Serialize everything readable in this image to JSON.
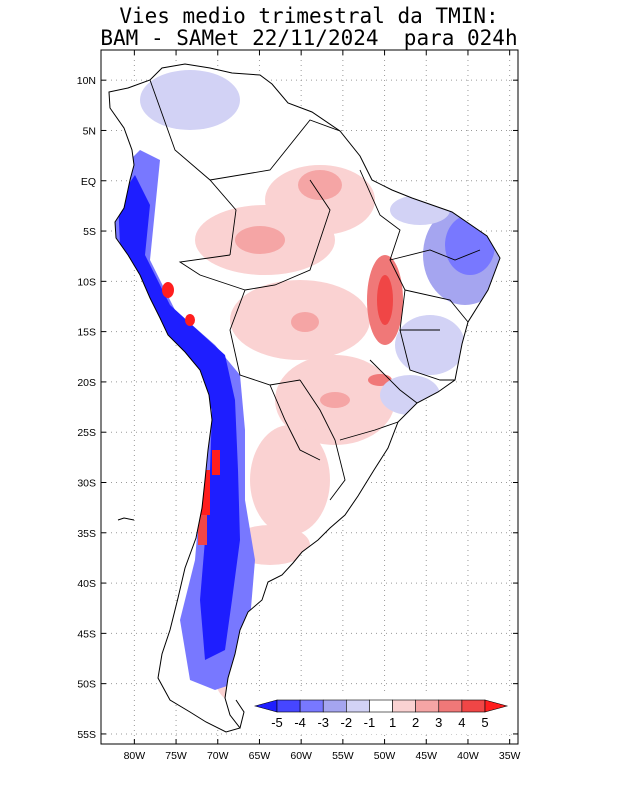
{
  "title": {
    "line1": "Vies medio trimestral da TMIN:",
    "line2": "BAM - SAMet 22/11/2024  para 024h"
  },
  "map": {
    "lon_range": [
      -84,
      -34
    ],
    "lat_range": [
      -56,
      13
    ],
    "grid": "dotted",
    "x_ticks": [
      "80W",
      "75W",
      "70W",
      "65W",
      "60W",
      "55W",
      "50W",
      "45W",
      "40W",
      "35W"
    ],
    "x_tick_values": [
      -80,
      -75,
      -70,
      -65,
      -60,
      -55,
      -50,
      -45,
      -40,
      -35
    ],
    "y_ticks": [
      "10N",
      "5N",
      "EQ",
      "5S",
      "10S",
      "15S",
      "20S",
      "25S",
      "30S",
      "35S",
      "40S",
      "45S",
      "50S",
      "55S"
    ],
    "y_tick_values": [
      10,
      5,
      0,
      -5,
      -10,
      -15,
      -20,
      -25,
      -30,
      -35,
      -40,
      -45,
      -50,
      -55
    ]
  },
  "colorbar": {
    "labels": [
      "-5",
      "-4",
      "-3",
      "-2",
      "-1",
      "1",
      "2",
      "3",
      "4",
      "5"
    ],
    "colors": [
      "#1e1eff",
      "#4646ff",
      "#7878ff",
      "#a5a5f0",
      "#d2d2f5",
      "#ffffff",
      "#fad2d2",
      "#f5a5a5",
      "#f07878",
      "#f04646",
      "#ff1e1e"
    ]
  }
}
